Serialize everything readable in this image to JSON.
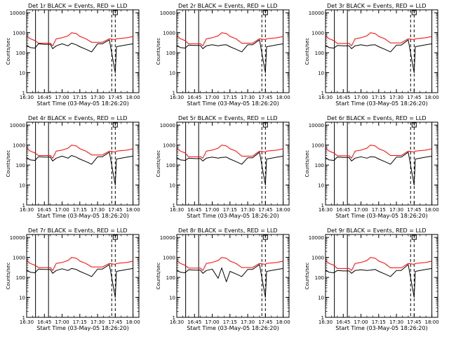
{
  "figure": {
    "xlabel": "Start Time (03-May-05 18:26:20)",
    "ylabel": "Counts/sec",
    "xticks": [
      "16:30",
      "16:45",
      "17:00",
      "17:15",
      "17:30",
      "17:45",
      "18:00"
    ],
    "yticks": [
      "1",
      "10",
      "100",
      "1000",
      "10000"
    ]
  },
  "chart_data": {
    "type": "line",
    "layout": "3x3 grid of panels",
    "x_unit": "minutes after 16:30",
    "xlim": [
      0,
      95
    ],
    "ylim": [
      1,
      14000
    ],
    "y_scale": "log",
    "grid": false,
    "colors": {
      "events": "#000000",
      "lld": "#ff0000"
    },
    "markers": {
      "solid_vertical_x": [
        7.5,
        90,
        18.5
      ],
      "dashed_vertical_x": [
        72,
        75
      ],
      "box_x": 75
    },
    "panels": [
      {
        "title": "Det 1r BLACK = Events, RED = LLD",
        "events": {
          "x": [
            0,
            3,
            7,
            10,
            15,
            20,
            22,
            25,
            30,
            35,
            38,
            42,
            45,
            50,
            55,
            60,
            62,
            64,
            70,
            75,
            76,
            85,
            90
          ],
          "y": [
            240,
            180,
            170,
            280,
            260,
            260,
            160,
            220,
            280,
            220,
            300,
            250,
            200,
            150,
            110,
            280,
            280,
            280,
            440,
            10,
            200,
            250,
            280
          ]
        },
        "lld": {
          "x": [
            0,
            3,
            7,
            10,
            15,
            20,
            22,
            25,
            30,
            35,
            38,
            42,
            45,
            50,
            55,
            60,
            62,
            64,
            70,
            75,
            76,
            85,
            90
          ],
          "y": [
            700,
            500,
            400,
            300,
            300,
            300,
            220,
            500,
            560,
            700,
            1000,
            900,
            650,
            500,
            330,
            330,
            330,
            330,
            500,
            450,
            500,
            560,
            650
          ]
        }
      },
      {
        "title": "Det 2r BLACK = Events, RED = LLD",
        "events": {
          "x": [
            0,
            3,
            7,
            10,
            15,
            20,
            22,
            25,
            30,
            35,
            38,
            42,
            45,
            50,
            55,
            60,
            62,
            64,
            70,
            75,
            76,
            85,
            90
          ],
          "y": [
            240,
            180,
            170,
            240,
            230,
            230,
            160,
            220,
            250,
            220,
            240,
            250,
            200,
            150,
            110,
            250,
            250,
            250,
            440,
            10,
            200,
            250,
            280
          ]
        },
        "lld": {
          "x": [
            0,
            3,
            7,
            10,
            15,
            20,
            22,
            25,
            30,
            35,
            38,
            42,
            45,
            50,
            55,
            60,
            62,
            64,
            70,
            75,
            76,
            85,
            90
          ],
          "y": [
            700,
            500,
            400,
            280,
            280,
            280,
            220,
            500,
            560,
            700,
            1000,
            900,
            650,
            500,
            300,
            300,
            300,
            300,
            500,
            450,
            500,
            560,
            650
          ]
        }
      },
      {
        "title": "Det 3r BLACK = Events, RED = LLD",
        "events": {
          "x": [
            0,
            3,
            7,
            10,
            15,
            20,
            22,
            25,
            30,
            35,
            38,
            42,
            45,
            50,
            55,
            60,
            62,
            64,
            70,
            75,
            76,
            85,
            90
          ],
          "y": [
            240,
            180,
            170,
            230,
            220,
            220,
            160,
            220,
            250,
            220,
            240,
            250,
            200,
            150,
            110,
            240,
            240,
            240,
            440,
            10,
            200,
            250,
            280
          ]
        },
        "lld": {
          "x": [
            0,
            3,
            7,
            10,
            15,
            20,
            22,
            25,
            30,
            35,
            38,
            42,
            45,
            50,
            55,
            60,
            62,
            64,
            70,
            75,
            76,
            85,
            90
          ],
          "y": [
            700,
            500,
            400,
            290,
            290,
            290,
            220,
            500,
            560,
            700,
            1000,
            900,
            650,
            500,
            310,
            310,
            310,
            310,
            500,
            450,
            500,
            560,
            650
          ]
        }
      },
      {
        "title": "Det 4r BLACK = Events, RED = LLD",
        "events": {
          "x": [
            0,
            3,
            7,
            10,
            15,
            20,
            22,
            25,
            30,
            35,
            38,
            42,
            45,
            50,
            55,
            60,
            62,
            64,
            70,
            75,
            76,
            85,
            90
          ],
          "y": [
            240,
            180,
            170,
            260,
            250,
            250,
            160,
            220,
            280,
            220,
            300,
            250,
            200,
            150,
            110,
            260,
            260,
            260,
            440,
            10,
            200,
            250,
            280
          ]
        },
        "lld": {
          "x": [
            0,
            3,
            7,
            10,
            15,
            20,
            22,
            25,
            30,
            35,
            38,
            42,
            45,
            50,
            55,
            60,
            62,
            64,
            70,
            75,
            76,
            85,
            90
          ],
          "y": [
            700,
            500,
            400,
            300,
            300,
            300,
            220,
            500,
            560,
            700,
            1000,
            900,
            650,
            500,
            320,
            320,
            320,
            320,
            500,
            450,
            500,
            560,
            650
          ]
        }
      },
      {
        "title": "Det 5r BLACK = Events, RED = LLD",
        "events": {
          "x": [
            0,
            3,
            7,
            10,
            15,
            20,
            22,
            25,
            30,
            35,
            38,
            42,
            45,
            50,
            55,
            60,
            62,
            64,
            70,
            75,
            76,
            85,
            90
          ],
          "y": [
            240,
            180,
            170,
            220,
            210,
            210,
            160,
            220,
            250,
            220,
            240,
            250,
            200,
            150,
            110,
            230,
            230,
            230,
            440,
            10,
            200,
            250,
            280
          ]
        },
        "lld": {
          "x": [
            0,
            3,
            7,
            10,
            15,
            20,
            22,
            25,
            30,
            35,
            38,
            42,
            45,
            50,
            55,
            60,
            62,
            64,
            70,
            75,
            76,
            85,
            90
          ],
          "y": [
            700,
            500,
            400,
            260,
            260,
            260,
            220,
            500,
            560,
            700,
            1000,
            900,
            650,
            500,
            280,
            280,
            280,
            280,
            500,
            450,
            500,
            560,
            650
          ]
        }
      },
      {
        "title": "Det 6r BLACK = Events, RED = LLD",
        "events": {
          "x": [
            0,
            3,
            7,
            10,
            15,
            20,
            22,
            25,
            30,
            35,
            38,
            42,
            45,
            50,
            55,
            60,
            62,
            64,
            70,
            75,
            76,
            85,
            90
          ],
          "y": [
            240,
            180,
            170,
            250,
            240,
            240,
            160,
            220,
            260,
            220,
            260,
            250,
            200,
            150,
            110,
            250,
            250,
            250,
            440,
            10,
            200,
            250,
            280
          ]
        },
        "lld": {
          "x": [
            0,
            3,
            7,
            10,
            15,
            20,
            22,
            25,
            30,
            35,
            38,
            42,
            45,
            50,
            55,
            60,
            62,
            64,
            70,
            75,
            76,
            85,
            90
          ],
          "y": [
            700,
            500,
            400,
            290,
            290,
            290,
            220,
            500,
            560,
            700,
            1000,
            900,
            650,
            500,
            300,
            300,
            300,
            300,
            500,
            450,
            500,
            560,
            650
          ]
        }
      },
      {
        "title": "Det 7r BLACK = Events, RED = LLD",
        "events": {
          "x": [
            0,
            3,
            7,
            10,
            15,
            20,
            22,
            25,
            30,
            35,
            38,
            42,
            45,
            50,
            55,
            60,
            62,
            64,
            70,
            75,
            76,
            85,
            90
          ],
          "y": [
            240,
            180,
            170,
            260,
            250,
            250,
            160,
            220,
            270,
            220,
            280,
            250,
            200,
            150,
            110,
            260,
            260,
            260,
            440,
            10,
            200,
            250,
            280
          ]
        },
        "lld": {
          "x": [
            0,
            3,
            7,
            10,
            15,
            20,
            22,
            25,
            30,
            35,
            38,
            42,
            45,
            50,
            55,
            60,
            62,
            64,
            70,
            75,
            76,
            85,
            90
          ],
          "y": [
            700,
            500,
            400,
            310,
            310,
            310,
            220,
            500,
            560,
            700,
            1000,
            900,
            650,
            500,
            330,
            330,
            330,
            330,
            500,
            450,
            500,
            560,
            650
          ]
        }
      },
      {
        "title": "Det 8r BLACK = Events, RED = LLD",
        "events": {
          "x": [
            0,
            3,
            7,
            10,
            15,
            20,
            22,
            25,
            30,
            35,
            38,
            42,
            45,
            50,
            55,
            60,
            62,
            64,
            70,
            75,
            76,
            85,
            90
          ],
          "y": [
            240,
            180,
            170,
            240,
            230,
            230,
            160,
            220,
            260,
            90,
            300,
            60,
            200,
            150,
            110,
            250,
            250,
            250,
            440,
            10,
            200,
            250,
            280
          ]
        },
        "lld": {
          "x": [
            0,
            3,
            7,
            10,
            15,
            20,
            22,
            25,
            30,
            35,
            38,
            42,
            45,
            50,
            55,
            60,
            62,
            64,
            70,
            75,
            76,
            85,
            90
          ],
          "y": [
            700,
            500,
            400,
            290,
            290,
            290,
            220,
            500,
            560,
            700,
            1000,
            900,
            650,
            500,
            310,
            310,
            310,
            310,
            500,
            450,
            500,
            560,
            650
          ]
        }
      },
      {
        "title": "Det 9r BLACK = Events, RED = LLD",
        "events": {
          "x": [
            0,
            3,
            7,
            10,
            15,
            20,
            22,
            25,
            30,
            35,
            38,
            42,
            45,
            50,
            55,
            60,
            62,
            64,
            70,
            75,
            76,
            85,
            90
          ],
          "y": [
            240,
            180,
            170,
            220,
            210,
            210,
            160,
            220,
            240,
            220,
            230,
            250,
            200,
            150,
            110,
            220,
            220,
            220,
            440,
            10,
            200,
            250,
            280
          ]
        },
        "lld": {
          "x": [
            0,
            3,
            7,
            10,
            15,
            20,
            22,
            25,
            30,
            35,
            38,
            42,
            45,
            50,
            55,
            60,
            62,
            64,
            70,
            75,
            76,
            85,
            90
          ],
          "y": [
            700,
            500,
            400,
            280,
            280,
            280,
            220,
            500,
            560,
            700,
            1000,
            900,
            650,
            500,
            300,
            300,
            300,
            300,
            500,
            450,
            500,
            560,
            650
          ]
        }
      }
    ]
  }
}
